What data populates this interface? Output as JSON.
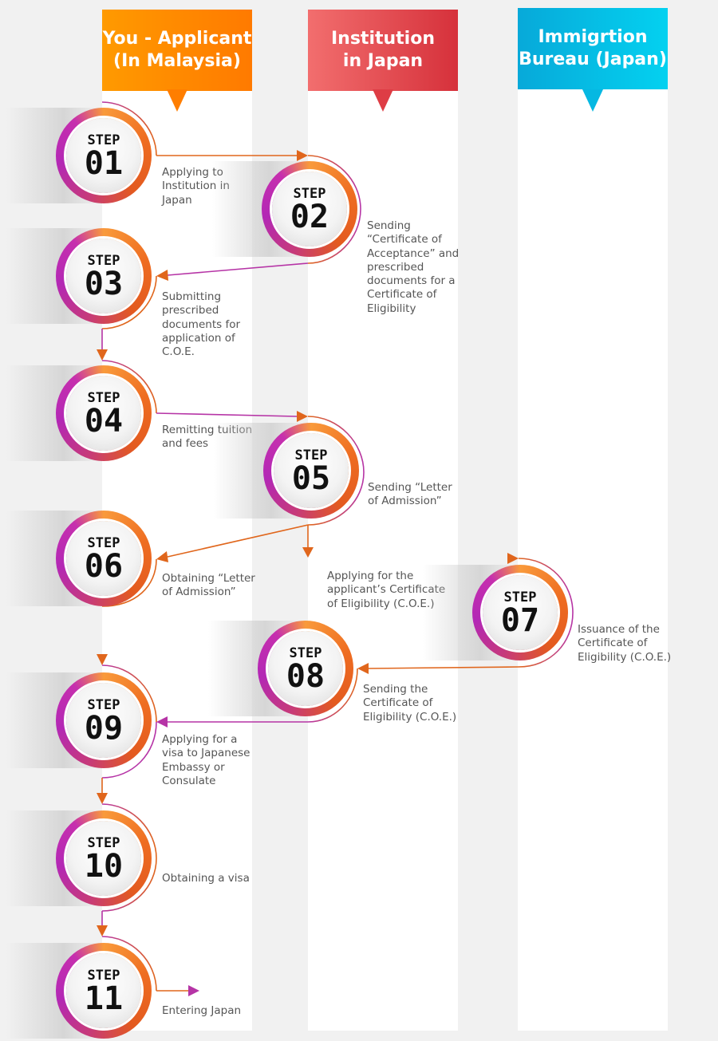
{
  "lanes": [
    {
      "title_line1": "You - Applicant",
      "title_line2": "(In Malaysia)"
    },
    {
      "title_line1": "Institution",
      "title_line2": "in Japan"
    },
    {
      "title_line1": "Immigrtion",
      "title_line2": "Bureau (Japan)"
    }
  ],
  "step_word": "STEP",
  "steps": [
    {
      "number": "01",
      "desc": [
        "Applying to",
        "Institution in",
        "Japan"
      ]
    },
    {
      "number": "02",
      "desc": [
        "Sending",
        "“Certificate of",
        "Acceptance” and",
        "prescribed",
        "documents for a",
        "Certificate of",
        "Eligibility"
      ]
    },
    {
      "number": "03",
      "desc": [
        "Submitting",
        "prescribed",
        "documents for",
        "application of",
        "C.O.E."
      ]
    },
    {
      "number": "04",
      "desc": [
        "Remitting tuition",
        "and fees"
      ]
    },
    {
      "number": "05",
      "desc": [
        "Sending “Letter",
        "of Admission”"
      ]
    },
    {
      "number": "06",
      "desc": [
        "Obtaining “Letter",
        "of Admission”"
      ]
    },
    {
      "number": "07",
      "desc": [
        "Issuance of the",
        "Certificate of",
        "Eligibility (C.O.E.)"
      ]
    },
    {
      "number": "08",
      "desc": [
        "Sending the",
        "Certificate of",
        "Eligibility (C.O.E.)"
      ]
    },
    {
      "number": "09",
      "desc": [
        "Applying for a",
        "visa to Japanese",
        "Embassy or",
        "Consulate"
      ]
    },
    {
      "number": "10",
      "desc": [
        "Obtaining a visa"
      ]
    },
    {
      "number": "11",
      "desc": [
        "Entering Japan"
      ]
    }
  ],
  "connector_label": [
    "Applying for the",
    "applicant’s Certificate",
    "of Eligibility (C.O.E.)"
  ],
  "colors": {
    "arrow_orange": "#e0661c",
    "arrow_purple": "#b634a6"
  }
}
